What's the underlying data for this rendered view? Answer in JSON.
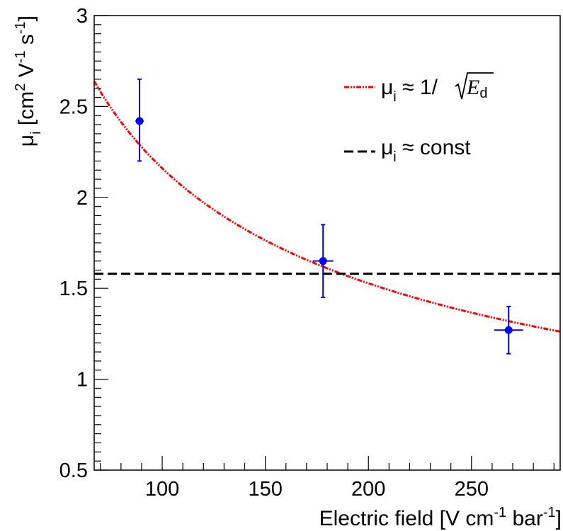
{
  "chart_data": {
    "type": "scatter",
    "xlabel": {
      "main": "Electric field [V cm",
      "sup1": "-1",
      "mid": " bar",
      "sup2": "-1",
      "end": "]"
    },
    "ylabel": {
      "mu": "μ",
      "sub": "i",
      "main": " [cm",
      "sup1": "2",
      "mid1": " V",
      "sup2": "-1",
      "mid2": " s",
      "sup3": "-1",
      "end": "]"
    },
    "xlim": [
      67,
      293
    ],
    "ylim": [
      0.5,
      3.0
    ],
    "xticks": [
      100,
      150,
      200,
      250
    ],
    "yticks": [
      0.5,
      1,
      1.5,
      2,
      2.5,
      3
    ],
    "xtick_labels": [
      "100",
      "150",
      "200",
      "250"
    ],
    "ytick_labels": [
      "0.5",
      "1",
      "1.5",
      "2",
      "2.5",
      "3"
    ],
    "series": [
      {
        "points": [
          {
            "x": 89,
            "y": 2.42,
            "xerr": 2,
            "yerr_low": 0.22,
            "yerr_high": 0.23
          },
          {
            "x": 178,
            "y": 1.65,
            "xerr": 5,
            "yerr_low": 0.2,
            "yerr_high": 0.2
          },
          {
            "x": 268,
            "y": 1.27,
            "xerr": 7,
            "yerr_low": 0.13,
            "yerr_high": 0.13
          }
        ],
        "color": "#0000ff"
      }
    ],
    "fits": [
      {
        "model": "inverse-sqrt",
        "k": 21.6,
        "color": "#ff0000",
        "style": "dash-dot"
      },
      {
        "model": "const",
        "value": 1.58,
        "color": "#000000",
        "style": "dashed"
      }
    ],
    "legend": {
      "position": "top-right",
      "entries": [
        {
          "mu": "μ",
          "sub": "i",
          "text": " ≈ 1/",
          "sqrt_var": "E",
          "sqrt_sub": "d"
        },
        {
          "mu": "μ",
          "sub": "i",
          "text": " ≈ const"
        }
      ]
    },
    "grid": false
  }
}
